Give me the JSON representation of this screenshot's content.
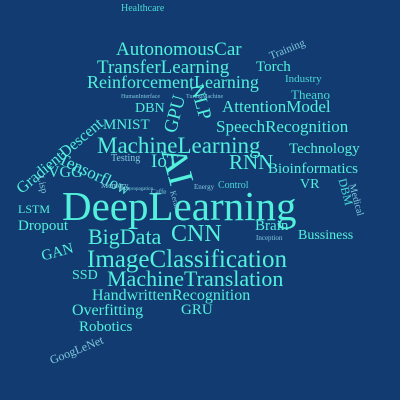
{
  "colors": {
    "background": "#123c71",
    "bright": "#53f0dc",
    "medium": "#49d8d4",
    "soft": "#7fc8dc"
  },
  "words": [
    {
      "text": "Healthcare",
      "size": 10,
      "color": "medium",
      "rot": 0
    },
    {
      "text": "AutonomousCar",
      "size": 19,
      "color": "bright",
      "rot": 0
    },
    {
      "text": "Training",
      "size": 11,
      "color": "soft",
      "rot": -22
    },
    {
      "text": "TransferLearning",
      "size": 19,
      "color": "bright",
      "rot": 0
    },
    {
      "text": "Torch",
      "size": 15,
      "color": "bright",
      "rot": 0
    },
    {
      "text": "Industry",
      "size": 11,
      "color": "medium",
      "rot": 0
    },
    {
      "text": "ReinforcementLearning",
      "size": 18,
      "color": "bright",
      "rot": 0
    },
    {
      "text": "Theano",
      "size": 13,
      "color": "medium",
      "rot": 0
    },
    {
      "text": "HumanInterface",
      "size": 6,
      "color": "soft",
      "rot": 0
    },
    {
      "text": "TuringMachine",
      "size": 6,
      "color": "soft",
      "rot": 0
    },
    {
      "text": "DBN",
      "size": 14,
      "color": "bright",
      "rot": 0
    },
    {
      "text": "GPU",
      "size": 19,
      "color": "bright",
      "rot": -75
    },
    {
      "text": "NLP",
      "size": 19,
      "color": "bright",
      "rot": 75
    },
    {
      "text": "AttentionModel",
      "size": 17,
      "color": "bright",
      "rot": 0
    },
    {
      "text": "GradientDescent",
      "size": 16,
      "color": "bright",
      "rot": -40
    },
    {
      "text": "MNIST",
      "size": 15,
      "color": "bright",
      "rot": 0
    },
    {
      "text": "SpeechRecognition",
      "size": 17,
      "color": "bright",
      "rot": 0
    },
    {
      "text": "MachineLearning",
      "size": 23,
      "color": "bright",
      "rot": 0
    },
    {
      "text": "Technology",
      "size": 15,
      "color": "bright",
      "rot": 0
    },
    {
      "text": "Tensorflow",
      "size": 17,
      "color": "bright",
      "rot": 25
    },
    {
      "text": "Testing",
      "size": 10,
      "color": "soft",
      "rot": 0
    },
    {
      "text": "IoT",
      "size": 19,
      "color": "bright",
      "rot": 0
    },
    {
      "text": "AI",
      "size": 36,
      "color": "bright",
      "rot": 75
    },
    {
      "text": "RNN",
      "size": 21,
      "color": "bright",
      "rot": 0
    },
    {
      "text": "Bioinformatics",
      "size": 15,
      "color": "bright",
      "rot": 0
    },
    {
      "text": "VGG",
      "size": 16,
      "color": "bright",
      "rot": 0
    },
    {
      "text": "Memory",
      "size": 8,
      "color": "soft",
      "rot": 0
    },
    {
      "text": "Energy",
      "size": 7,
      "color": "soft",
      "rot": 0
    },
    {
      "text": "Control",
      "size": 10,
      "color": "medium",
      "rot": 0
    },
    {
      "text": "VR",
      "size": 14,
      "color": "bright",
      "rot": 0
    },
    {
      "text": "Medical",
      "size": 10,
      "color": "soft",
      "rot": 75
    },
    {
      "text": "Lisp",
      "size": 10,
      "color": "soft",
      "rot": 75
    },
    {
      "text": "DBM",
      "size": 12,
      "color": "medium",
      "rot": 75
    },
    {
      "text": "DeepLearning",
      "size": 41,
      "color": "bright",
      "rot": 0
    },
    {
      "text": "LSTM",
      "size": 12,
      "color": "bright",
      "rot": 0
    },
    {
      "text": "Dropout",
      "size": 15,
      "color": "bright",
      "rot": 0
    },
    {
      "text": "Backpropagation",
      "size": 5,
      "color": "soft",
      "rot": 0
    },
    {
      "text": "Caffe",
      "size": 7,
      "color": "soft",
      "rot": 0
    },
    {
      "text": "Keras",
      "size": 8,
      "color": "soft",
      "rot": 75
    },
    {
      "text": "Brain",
      "size": 15,
      "color": "bright",
      "rot": 0
    },
    {
      "text": "Bussiness",
      "size": 14,
      "color": "bright",
      "rot": 0
    },
    {
      "text": "GAN",
      "size": 15,
      "color": "bright",
      "rot": -15
    },
    {
      "text": "BigData",
      "size": 22,
      "color": "bright",
      "rot": 0
    },
    {
      "text": "CNN",
      "size": 24,
      "color": "bright",
      "rot": 0
    },
    {
      "text": "Inception",
      "size": 7,
      "color": "soft",
      "rot": 0
    },
    {
      "text": "ImageClassification",
      "size": 25,
      "color": "bright",
      "rot": 0
    },
    {
      "text": "SSD",
      "size": 14,
      "color": "bright",
      "rot": 0
    },
    {
      "text": "MachineTranslation",
      "size": 22,
      "color": "bright",
      "rot": 0
    },
    {
      "text": "HandwrittenRecognition",
      "size": 16,
      "color": "bright",
      "rot": 0
    },
    {
      "text": "Overfitting",
      "size": 16,
      "color": "bright",
      "rot": 0
    },
    {
      "text": "GRU",
      "size": 15,
      "color": "bright",
      "rot": 0
    },
    {
      "text": "Robotics",
      "size": 15,
      "color": "bright",
      "rot": 0
    },
    {
      "text": "GoogLeNet",
      "size": 12,
      "color": "soft",
      "rot": -22
    }
  ]
}
